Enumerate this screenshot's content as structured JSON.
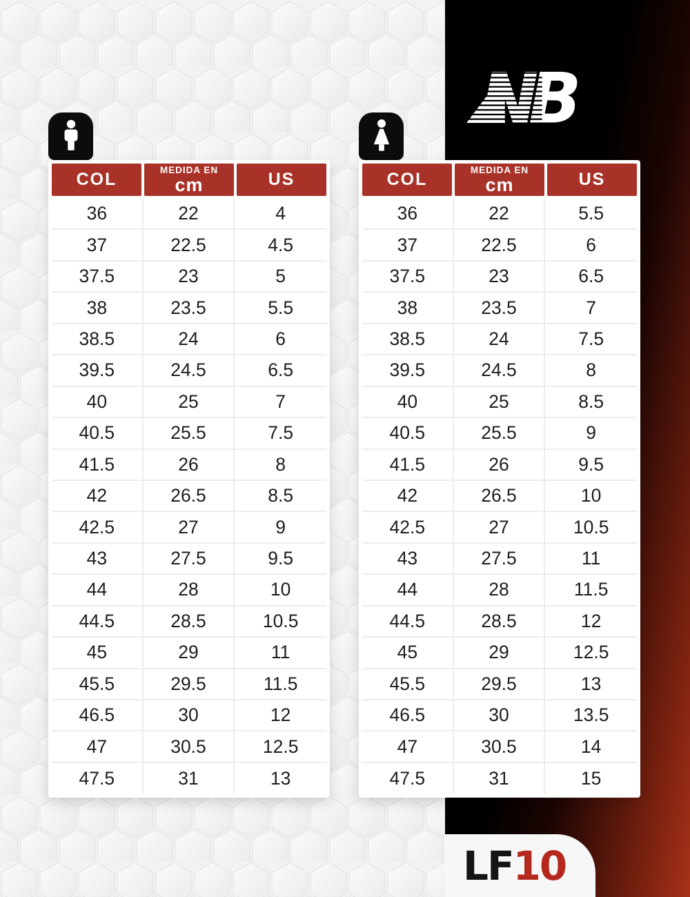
{
  "brand": {
    "nb_n": "N",
    "nb_b": "B"
  },
  "footer_logo": {
    "black_part": "LF",
    "red_part": "10"
  },
  "colors": {
    "accent-red": "#a93228",
    "logo-red": "#b5281e",
    "panel-red": "#a83119",
    "bg-gray": "#f1f1f1",
    "text-dark": "#1d1d1d"
  },
  "chart_data": [
    {
      "type": "table",
      "gender": "men",
      "icon": "man-icon",
      "columns": [
        "COL",
        "MEDIDA EN cm",
        "US"
      ],
      "header": {
        "col": "COL",
        "cm_label": "MEDIDA EN",
        "cm_unit": "cm",
        "us": "US"
      },
      "rows": [
        [
          "36",
          "22",
          "4"
        ],
        [
          "37",
          "22.5",
          "4.5"
        ],
        [
          "37.5",
          "23",
          "5"
        ],
        [
          "38",
          "23.5",
          "5.5"
        ],
        [
          "38.5",
          "24",
          "6"
        ],
        [
          "39.5",
          "24.5",
          "6.5"
        ],
        [
          "40",
          "25",
          "7"
        ],
        [
          "40.5",
          "25.5",
          "7.5"
        ],
        [
          "41.5",
          "26",
          "8"
        ],
        [
          "42",
          "26.5",
          "8.5"
        ],
        [
          "42.5",
          "27",
          "9"
        ],
        [
          "43",
          "27.5",
          "9.5"
        ],
        [
          "44",
          "28",
          "10"
        ],
        [
          "44.5",
          "28.5",
          "10.5"
        ],
        [
          "45",
          "29",
          "11"
        ],
        [
          "45.5",
          "29.5",
          "11.5"
        ],
        [
          "46.5",
          "30",
          "12"
        ],
        [
          "47",
          "30.5",
          "12.5"
        ],
        [
          "47.5",
          "31",
          "13"
        ]
      ]
    },
    {
      "type": "table",
      "gender": "women",
      "icon": "woman-icon",
      "columns": [
        "COL",
        "MEDIDA EN cm",
        "US"
      ],
      "header": {
        "col": "COL",
        "cm_label": "MEDIDA EN",
        "cm_unit": "cm",
        "us": "US"
      },
      "rows": [
        [
          "36",
          "22",
          "5.5"
        ],
        [
          "37",
          "22.5",
          "6"
        ],
        [
          "37.5",
          "23",
          "6.5"
        ],
        [
          "38",
          "23.5",
          "7"
        ],
        [
          "38.5",
          "24",
          "7.5"
        ],
        [
          "39.5",
          "24.5",
          "8"
        ],
        [
          "40",
          "25",
          "8.5"
        ],
        [
          "40.5",
          "25.5",
          "9"
        ],
        [
          "41.5",
          "26",
          "9.5"
        ],
        [
          "42",
          "26.5",
          "10"
        ],
        [
          "42.5",
          "27",
          "10.5"
        ],
        [
          "43",
          "27.5",
          "11"
        ],
        [
          "44",
          "28",
          "11.5"
        ],
        [
          "44.5",
          "28.5",
          "12"
        ],
        [
          "45",
          "29",
          "12.5"
        ],
        [
          "45.5",
          "29.5",
          "13"
        ],
        [
          "46.5",
          "30",
          "13.5"
        ],
        [
          "47",
          "30.5",
          "14"
        ],
        [
          "47.5",
          "31",
          "15"
        ]
      ]
    }
  ]
}
